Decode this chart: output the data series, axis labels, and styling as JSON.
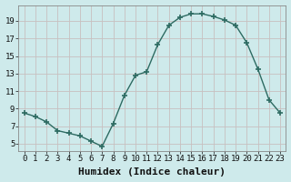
{
  "x": [
    0,
    1,
    2,
    3,
    4,
    5,
    6,
    7,
    8,
    9,
    10,
    11,
    12,
    13,
    14,
    15,
    16,
    17,
    18,
    19,
    20,
    21,
    22,
    23
  ],
  "y": [
    8.5,
    8.1,
    7.5,
    6.5,
    6.2,
    5.9,
    5.3,
    4.7,
    7.3,
    10.5,
    12.8,
    13.2,
    16.3,
    18.5,
    19.4,
    19.8,
    19.8,
    19.5,
    19.1,
    18.5,
    16.5,
    13.5,
    10.0,
    8.5
  ],
  "line_color": "#2d6b62",
  "marker": "+",
  "markersize": 5,
  "markeredgewidth": 1.2,
  "linewidth": 1.0,
  "bg_color": "#ceeaeb",
  "grid_color": "#c8bfbf",
  "xlabel": "Humidex (Indice chaleur)",
  "xlabel_fontsize": 8,
  "xlabel_fontweight": "bold",
  "ylabel_ticks": [
    5,
    7,
    9,
    11,
    13,
    15,
    17,
    19
  ],
  "xlim": [
    -0.5,
    23.5
  ],
  "ylim": [
    4.2,
    20.8
  ],
  "xtick_labels": [
    "0",
    "1",
    "2",
    "3",
    "4",
    "5",
    "6",
    "7",
    "8",
    "9",
    "10",
    "11",
    "12",
    "13",
    "14",
    "15",
    "16",
    "17",
    "18",
    "19",
    "20",
    "21",
    "22",
    "23"
  ],
  "tick_fontsize": 6.5,
  "spine_color": "#888888"
}
